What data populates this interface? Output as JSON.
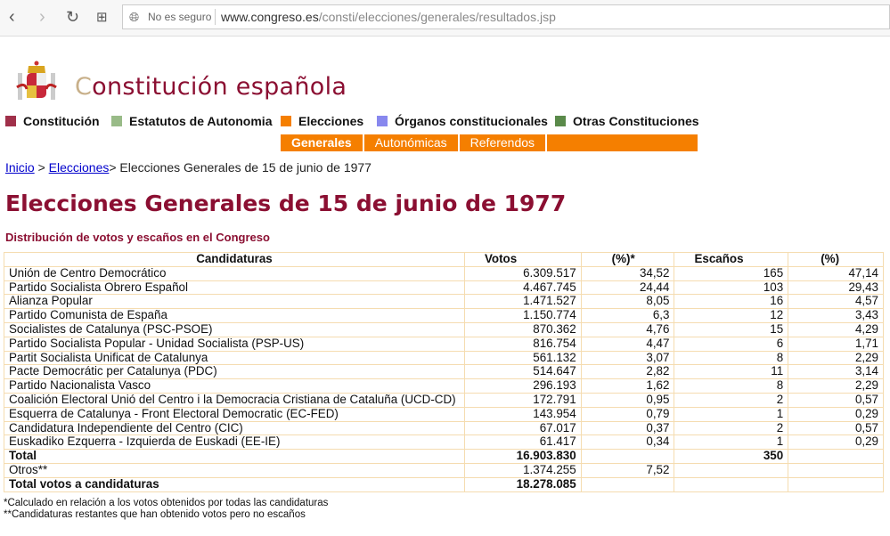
{
  "browser": {
    "security": "No es seguro",
    "url_host": "www.congreso.es",
    "url_path": "/consti/elecciones/generales/resultados.jsp"
  },
  "site": {
    "title_first": "C",
    "title_rest": "onstitución española"
  },
  "menu": [
    {
      "label": "Constitución",
      "color": "#a0304a"
    },
    {
      "label": "Estatutos de Autonomia",
      "color": "#99bb88"
    },
    {
      "label": "Elecciones",
      "color": "#f57f00"
    },
    {
      "label": "Órganos constitucionales",
      "color": "#8888ee"
    },
    {
      "label": "Otras Constituciones",
      "color": "#5a8a4a"
    }
  ],
  "submenu": [
    "Generales",
    "Autonómicas",
    "Referendos"
  ],
  "breadcrumb": {
    "home": "Inicio",
    "sep": " > ",
    "section": "Elecciones",
    "current": "> Elecciones Generales de 15 de junio de 1977"
  },
  "page": {
    "title": "Elecciones Generales de 15 de junio de 1977",
    "subtitle": "Distribución de votos y escaños en el Congreso"
  },
  "table": {
    "headers": [
      "Candidaturas",
      "Votos",
      "(%)*",
      "Escaños",
      "(%)"
    ],
    "rows": [
      [
        "Unión de Centro Democrático",
        "6.309.517",
        "34,52",
        "165",
        "47,14"
      ],
      [
        "Partido Socialista Obrero Español",
        "4.467.745",
        "24,44",
        "103",
        "29,43"
      ],
      [
        "Alianza Popular",
        "1.471.527",
        "8,05",
        "16",
        "4,57"
      ],
      [
        "Partido Comunista de España",
        "1.150.774",
        "6,3",
        "12",
        "3,43"
      ],
      [
        "Socialistes de Catalunya (PSC-PSOE)",
        "870.362",
        "4,76",
        "15",
        "4,29"
      ],
      [
        "Partido Socialista Popular - Unidad Socialista (PSP-US)",
        "816.754",
        "4,47",
        "6",
        "1,71"
      ],
      [
        "Partit Socialista Unificat de Catalunya",
        "561.132",
        "3,07",
        "8",
        "2,29"
      ],
      [
        "Pacte Democrátic per Catalunya (PDC)",
        "514.647",
        "2,82",
        "11",
        "3,14"
      ],
      [
        "Partido Nacionalista Vasco",
        "296.193",
        "1,62",
        "8",
        "2,29"
      ],
      [
        "Coalición Electoral Unió del Centro i la Democracia Cristiana de Cataluña (UCD-CD)",
        "172.791",
        "0,95",
        "2",
        "0,57"
      ],
      [
        "Esquerra de Catalunya - Front Electoral Democratic (EC-FED)",
        "143.954",
        "0,79",
        "1",
        "0,29"
      ],
      [
        "Candidatura Independiente del Centro (CIC)",
        "67.017",
        "0,37",
        "2",
        "0,57"
      ],
      [
        "Euskadiko Ezquerra - Izquierda de Euskadi (EE-IE)",
        "61.417",
        "0,34",
        "1",
        "0,29"
      ]
    ],
    "total": [
      "Total",
      "16.903.830",
      "",
      "350",
      ""
    ],
    "otros": [
      "Otros**",
      "1.374.255",
      "7,52",
      "",
      ""
    ],
    "total_votos": [
      "Total votos a candidaturas",
      "18.278.085",
      "",
      "",
      ""
    ]
  },
  "notes": [
    "*Calculado en relación a los votos obtenidos por todas las candidaturas",
    "**Candidaturas restantes que han obtenido votos pero no escaños"
  ]
}
